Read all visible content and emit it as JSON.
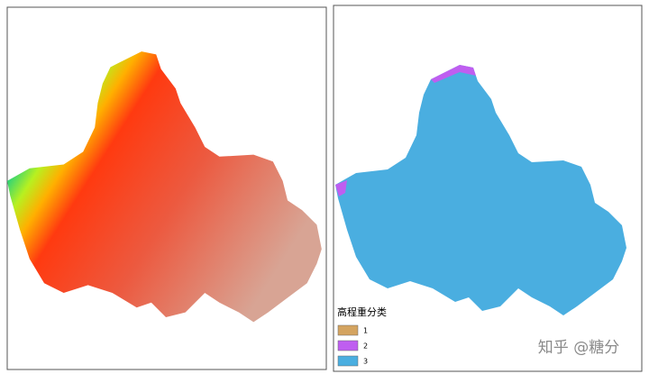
{
  "legend": {
    "title": "高程重分类",
    "items": [
      {
        "label": "1",
        "color": "#d4a460"
      },
      {
        "label": "2",
        "color": "#bf5ef0"
      },
      {
        "label": "3",
        "color": "#4aaee0"
      }
    ]
  },
  "watermark": "知乎 @糖分"
}
